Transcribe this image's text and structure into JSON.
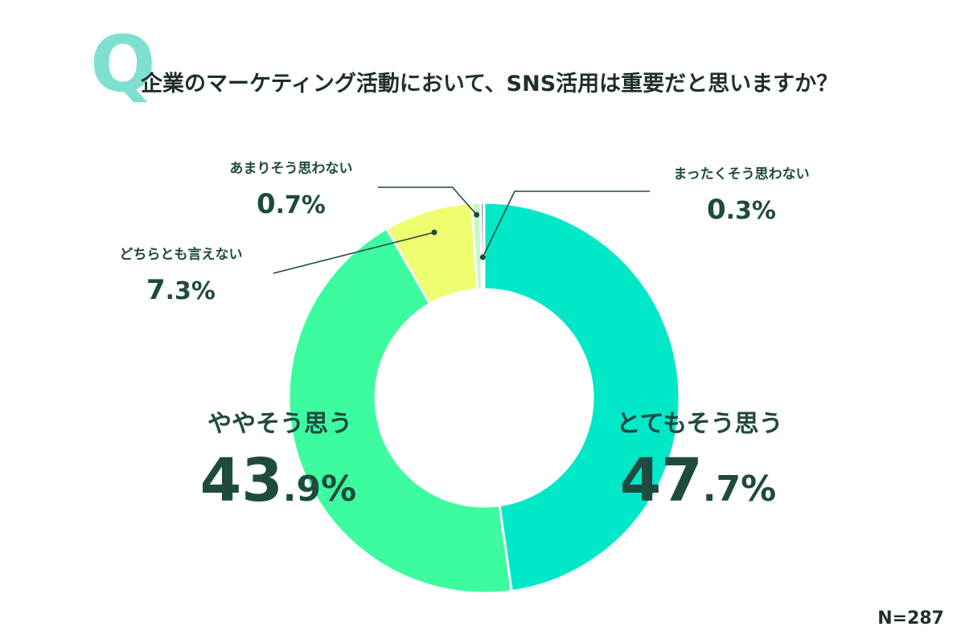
{
  "question": {
    "mark": "Q",
    "text": "企業のマーケティング活動において、SNS活用は重要だと思いますか？"
  },
  "sample_size": "N=287",
  "colors": {
    "q_mark": "#7fe0d2",
    "text_dark": "#1f4a3f",
    "leader": "#1f4a3f"
  },
  "chart_data": {
    "type": "pie",
    "style": "donut",
    "title": "企業のマーケティング活動において、SNS活用は重要だと思いますか？",
    "series": [
      {
        "label": "とてもそう思う",
        "value": 47.7,
        "display": "47.7%",
        "color": "#00e8c8"
      },
      {
        "label": "ややそう思う",
        "value": 43.9,
        "display": "43.9%",
        "color": "#3dfca0"
      },
      {
        "label": "どちらとも言えない",
        "value": 7.3,
        "display": "7.3%",
        "color": "#eefe6e"
      },
      {
        "label": "あまりそう思わない",
        "value": 0.7,
        "display": "0.7%",
        "color": "#c6f7c7"
      },
      {
        "label": "まったくそう思わない",
        "value": 0.3,
        "display": "0.3%",
        "color": "#8fa0a8"
      }
    ]
  }
}
